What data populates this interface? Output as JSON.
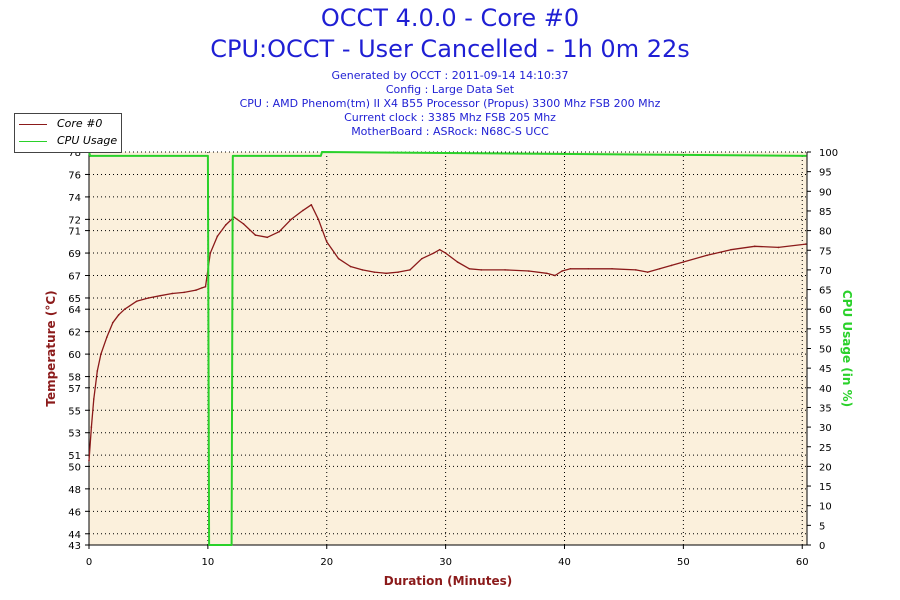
{
  "header": {
    "title": "OCCT 4.0.0 - Core #0",
    "subtitle": "CPU:OCCT - User Cancelled - 1h 0m 22s",
    "info": [
      "Generated by OCCT : 2011-09-14 14:10:37",
      "Config : Large Data Set",
      "CPU : AMD Phenom(tm) II X4 B55 Processor (Propus) 3300 Mhz FSB 200 Mhz",
      "Current clock : 3385 Mhz FSB 205 Mhz",
      "MotherBoard : ASRock: N68C-S UCC"
    ]
  },
  "legend": {
    "position": "top-left",
    "items": [
      {
        "label": "Core #0",
        "color": "#8b1a1a"
      },
      {
        "label": "CPU Usage",
        "color": "#2ad12a"
      }
    ]
  },
  "chart_data": {
    "type": "line",
    "xlabel": "Duration (Minutes)",
    "ylabel_left": "Temperature (°C)",
    "ylabel_right": "CPU Usage (in %)",
    "xlim": [
      0,
      60.4
    ],
    "ylim_left": [
      43,
      78
    ],
    "ylim_right": [
      0,
      100
    ],
    "x_ticks": [
      0,
      10,
      20,
      30,
      40,
      50,
      60
    ],
    "y_ticks_left": [
      43,
      44,
      46,
      48,
      50,
      51,
      53,
      55,
      57,
      58,
      60,
      62,
      64,
      65,
      67,
      69,
      71,
      72,
      74,
      76,
      78
    ],
    "y_ticks_right": [
      0,
      5,
      10,
      15,
      20,
      25,
      30,
      35,
      40,
      45,
      50,
      55,
      60,
      65,
      70,
      75,
      80,
      85,
      90,
      95,
      100
    ],
    "grid": true,
    "colors": {
      "plot_background": "#fbf0dc",
      "temperature": "#8b1a1a",
      "cpu_usage": "#2ad12a",
      "grid": "#000000",
      "axis_label": "#8b1a1a",
      "axis_label_right": "#2ad12a",
      "title": "#1f1fd4"
    },
    "series": [
      {
        "name": "Core #0",
        "axis": "left",
        "x": [
          0,
          0.2,
          0.4,
          0.7,
          1.0,
          1.5,
          2.0,
          2.5,
          3.0,
          4.0,
          5.0,
          6.0,
          7.0,
          8.0,
          9.0,
          9.5,
          9.8,
          10.2,
          10.8,
          11.5,
          12.2,
          13.0,
          14.0,
          15.0,
          16.0,
          17.0,
          18.0,
          18.7,
          19.3,
          20.0,
          21.0,
          22.0,
          23.0,
          24.0,
          25.0,
          26.0,
          27.0,
          28.0,
          29.0,
          29.5,
          30.0,
          31.0,
          32.0,
          33.0,
          35.0,
          37.0,
          38.5,
          39.2,
          39.8,
          40.5,
          42.0,
          44.0,
          46.0,
          47.0,
          48.0,
          49.0,
          50.0,
          52.0,
          54.0,
          56.0,
          58.0,
          60.3
        ],
        "values": [
          50.5,
          53.5,
          56.0,
          58.5,
          60.0,
          61.5,
          62.8,
          63.5,
          64.0,
          64.7,
          65.0,
          65.2,
          65.4,
          65.5,
          65.7,
          65.9,
          66.0,
          69.0,
          70.5,
          71.5,
          72.2,
          71.6,
          70.6,
          70.4,
          70.9,
          72.0,
          72.8,
          73.3,
          72.0,
          70.0,
          68.5,
          67.8,
          67.5,
          67.3,
          67.2,
          67.3,
          67.5,
          68.5,
          69.0,
          69.3,
          69.0,
          68.2,
          67.6,
          67.5,
          67.5,
          67.4,
          67.2,
          67.0,
          67.4,
          67.6,
          67.6,
          67.6,
          67.5,
          67.3,
          67.6,
          67.9,
          68.2,
          68.8,
          69.3,
          69.6,
          69.5,
          69.8
        ]
      },
      {
        "name": "CPU Usage",
        "axis": "right",
        "x": [
          0,
          0.1,
          10.0,
          10.1,
          12.0,
          12.1,
          19.5,
          19.6,
          60.3
        ],
        "values": [
          100,
          99,
          99,
          0,
          0,
          99,
          99,
          100,
          99
        ]
      }
    ]
  }
}
